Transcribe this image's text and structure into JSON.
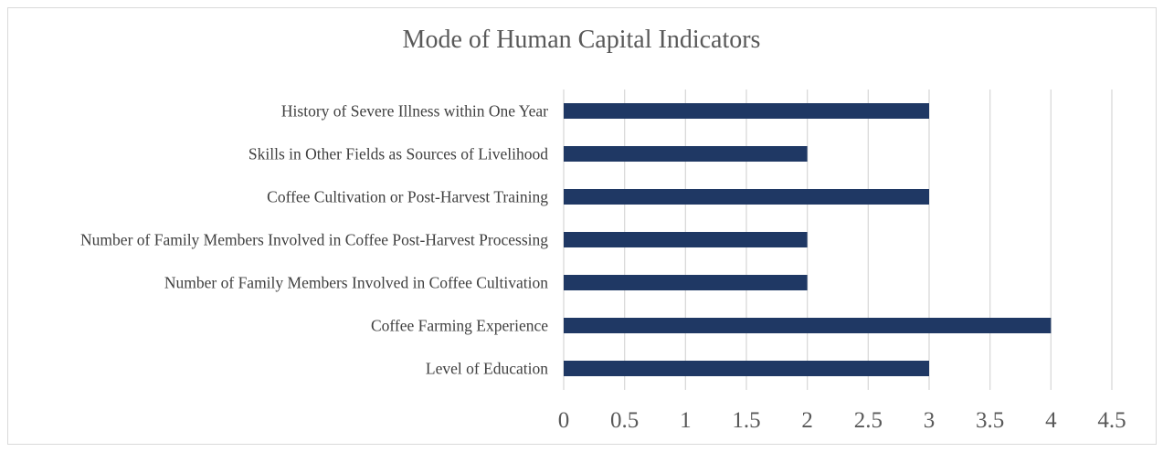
{
  "chart_data": {
    "type": "bar",
    "orientation": "horizontal",
    "title": "Mode of Human Capital Indicators",
    "categories": [
      "History of Severe Illness within One Year",
      "Skills in Other Fields as Sources of Livelihood",
      "Coffee Cultivation or Post-Harvest Training",
      "Number of Family Members Involved in Coffee Post-Harvest Processing",
      "Number of Family Members Involved in Coffee Cultivation",
      "Coffee Farming Experience",
      "Level of Education"
    ],
    "values": [
      3,
      2,
      3,
      2,
      2,
      4,
      3
    ],
    "xlim": [
      0,
      4.5
    ],
    "xticks": [
      "0",
      "0.5",
      "1",
      "1.5",
      "2",
      "2.5",
      "3",
      "3.5",
      "4",
      "4.5"
    ],
    "xlabel": "",
    "ylabel": "",
    "grid": "vertical",
    "legend": "none",
    "bar_color": "#1f3864"
  }
}
